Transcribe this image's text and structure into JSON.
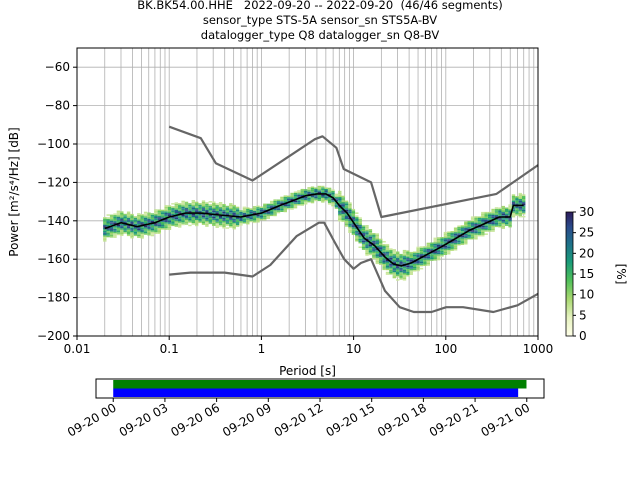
{
  "title_lines": [
    "BK.BK54.00.HHE   2022-09-20 -- 2022-09-20  (46/46 segments)",
    "sensor_type STS-5A sensor_sn STS5A-BV",
    "datalogger_type Q8 datalogger_sn Q8-BV"
  ],
  "chart_data": [
    {
      "type": "heatmap",
      "xlabel": "Period [s]",
      "ylabel": "Power [m²/s⁴/Hz] [dB]",
      "xscale": "log",
      "xlim": [
        0.01,
        1000
      ],
      "ylim": [
        -200,
        -50
      ],
      "x_ticks": [
        0.01,
        0.1,
        1,
        10,
        100,
        1000
      ],
      "x_tick_labels": [
        "0.01",
        "0.1",
        "1",
        "10",
        "100",
        "1000"
      ],
      "y_ticks": [
        -200,
        -180,
        -160,
        -140,
        -120,
        -100,
        -80,
        -60
      ],
      "y_tick_labels": [
        "−200",
        "−180",
        "−160",
        "−140",
        "−120",
        "−100",
        "−80",
        "−60"
      ],
      "grid": true,
      "colorbar": {
        "label": "[%]",
        "range": [
          0,
          30
        ],
        "ticks": [
          0,
          5,
          10,
          15,
          20,
          25,
          30
        ]
      },
      "series": [
        {
          "kind": "model",
          "values": [
            [
              0.1,
              -91
            ],
            [
              0.22,
              -97
            ],
            [
              0.32,
              -110
            ],
            [
              0.8,
              -119
            ],
            [
              3.8,
              -97.5
            ],
            [
              4.6,
              -96
            ],
            [
              6.5,
              -102
            ],
            [
              7.8,
              -113
            ],
            [
              15.5,
              -120
            ],
            [
              20,
              -138
            ],
            [
              355,
              -126
            ],
            [
              1000,
              -111
            ]
          ]
        },
        {
          "kind": "model",
          "values": [
            [
              0.1,
              -168
            ],
            [
              0.17,
              -167
            ],
            [
              0.4,
              -167
            ],
            [
              0.8,
              -169
            ],
            [
              1.25,
              -163
            ],
            [
              2.4,
              -148
            ],
            [
              4.2,
              -141
            ],
            [
              4.8,
              -141
            ],
            [
              6.2,
              -151
            ],
            [
              7.9,
              -160
            ],
            [
              10,
              -165
            ],
            [
              12,
              -162
            ],
            [
              15.5,
              -160
            ],
            [
              21.9,
              -176.5
            ],
            [
              31.6,
              -185
            ],
            [
              45,
              -187.5
            ],
            [
              70,
              -187.5
            ],
            [
              101,
              -185
            ],
            [
              154,
              -185
            ],
            [
              328,
              -187.5
            ],
            [
              600,
              -184
            ],
            [
              1000,
              -178
            ]
          ]
        },
        {
          "kind": "mean",
          "values": [
            [
              0.02,
              -144
            ],
            [
              0.03,
              -141
            ],
            [
              0.045,
              -143
            ],
            [
              0.07,
              -141
            ],
            [
              0.1,
              -138
            ],
            [
              0.15,
              -136
            ],
            [
              0.22,
              -136
            ],
            [
              0.35,
              -137
            ],
            [
              0.6,
              -138
            ],
            [
              1,
              -136
            ],
            [
              1.6,
              -132
            ],
            [
              2.2,
              -129.5
            ],
            [
              3,
              -127
            ],
            [
              4,
              -126
            ],
            [
              5,
              -126
            ],
            [
              6,
              -128
            ],
            [
              7,
              -132
            ],
            [
              8.5,
              -136
            ],
            [
              10,
              -141
            ],
            [
              13,
              -149
            ],
            [
              17,
              -153
            ],
            [
              22,
              -159
            ],
            [
              27,
              -162.5
            ],
            [
              33,
              -163.5
            ],
            [
              42,
              -162
            ],
            [
              60,
              -158
            ],
            [
              90,
              -153.5
            ],
            [
              120,
              -150
            ],
            [
              180,
              -145
            ],
            [
              250,
              -142
            ],
            [
              380,
              -138
            ],
            [
              500,
              -138
            ],
            [
              540,
              -132
            ],
            [
              700,
              -132
            ]
          ]
        }
      ]
    },
    {
      "type": "timeline",
      "x_ticks": [
        "09-20 00",
        "09-20 03",
        "09-20 06",
        "09-20 09",
        "09-20 12",
        "09-20 15",
        "09-20 18",
        "09-20 21",
        "09-21 00"
      ],
      "xlim": [
        "2022-09-19 23:00",
        "2022-09-21 01:00"
      ],
      "bars": [
        {
          "color": "#008000",
          "start": "2022-09-20 00:00",
          "end": "2022-09-20 23:59"
        },
        {
          "color": "#0000ff",
          "start": "2022-09-20 00:00",
          "end": "2022-09-20 23:30"
        }
      ]
    }
  ]
}
